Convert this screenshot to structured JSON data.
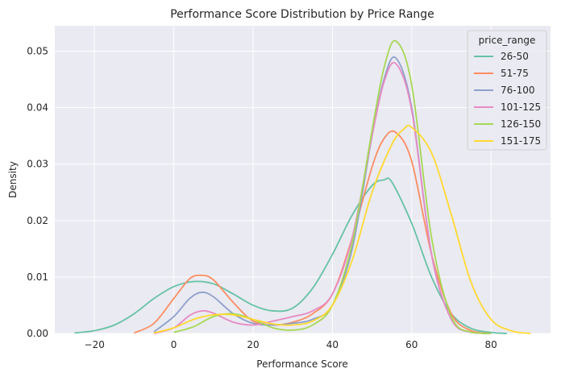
{
  "chart_data": {
    "type": "line",
    "title": "Performance Score Distribution by Price Range",
    "xlabel": "Performance Score",
    "ylabel": "Density",
    "xlim": [
      -30,
      95
    ],
    "ylim": [
      0,
      0.0545
    ],
    "xticks": [
      -20,
      0,
      20,
      40,
      60,
      80
    ],
    "xtick_labels": [
      "−20",
      "0",
      "20",
      "40",
      "60",
      "80"
    ],
    "yticks": [
      0,
      0.01,
      0.02,
      0.03,
      0.04,
      0.05
    ],
    "ytick_labels": [
      "0.00",
      "0.01",
      "0.02",
      "0.03",
      "0.04",
      "0.05"
    ],
    "grid": true,
    "legend": {
      "title": "price_range",
      "placement": "top-right"
    },
    "series": [
      {
        "name": "26-50",
        "color": "#66c2a5",
        "x": [
          -25,
          -20,
          -15,
          -10,
          -5,
          0,
          5,
          10,
          15,
          20,
          25,
          30,
          35,
          40,
          45,
          50,
          53,
          55,
          60,
          65,
          70,
          75,
          80,
          84
        ],
        "y": [
          0.0001,
          0.0005,
          0.0015,
          0.0035,
          0.0062,
          0.0083,
          0.0092,
          0.0088,
          0.007,
          0.005,
          0.004,
          0.0045,
          0.008,
          0.014,
          0.021,
          0.0262,
          0.0272,
          0.0268,
          0.0195,
          0.01,
          0.0035,
          0.0009,
          0.0002,
          0.0
        ]
      },
      {
        "name": "51-75",
        "color": "#fc8d62",
        "x": [
          -10,
          -5,
          0,
          4,
          7,
          10,
          15,
          20,
          25,
          30,
          35,
          40,
          45,
          50,
          53,
          56,
          60,
          65,
          70,
          75,
          80
        ],
        "y": [
          0.0001,
          0.0018,
          0.0062,
          0.0097,
          0.0103,
          0.0095,
          0.0055,
          0.0022,
          0.0015,
          0.002,
          0.0035,
          0.007,
          0.017,
          0.0295,
          0.0345,
          0.0356,
          0.0305,
          0.014,
          0.0035,
          0.0005,
          0.0
        ]
      },
      {
        "name": "76-100",
        "color": "#8da0cb",
        "x": [
          -5,
          0,
          4,
          7,
          10,
          15,
          20,
          25,
          30,
          35,
          40,
          45,
          50,
          53,
          56,
          60,
          65,
          70,
          75,
          80
        ],
        "y": [
          0.0003,
          0.003,
          0.0062,
          0.0073,
          0.0065,
          0.0035,
          0.0018,
          0.0015,
          0.0018,
          0.0025,
          0.005,
          0.015,
          0.035,
          0.045,
          0.0488,
          0.04,
          0.014,
          0.0025,
          0.0002,
          0.0
        ]
      },
      {
        "name": "101-125",
        "color": "#e78ac3",
        "x": [
          -5,
          0,
          4,
          7,
          10,
          15,
          20,
          25,
          30,
          35,
          40,
          45,
          50,
          53,
          56,
          60,
          65,
          70,
          75,
          80
        ],
        "y": [
          0.0,
          0.001,
          0.0032,
          0.004,
          0.0036,
          0.002,
          0.0015,
          0.0022,
          0.003,
          0.004,
          0.007,
          0.017,
          0.035,
          0.0445,
          0.0478,
          0.0395,
          0.014,
          0.0025,
          0.0002,
          0.0
        ]
      },
      {
        "name": "126-150",
        "color": "#a6d854",
        "x": [
          0,
          5,
          10,
          15,
          20,
          25,
          30,
          35,
          40,
          45,
          50,
          53,
          56,
          60,
          65,
          70,
          75,
          80
        ],
        "y": [
          0.0002,
          0.0012,
          0.003,
          0.0035,
          0.0025,
          0.001,
          0.0006,
          0.0015,
          0.005,
          0.016,
          0.036,
          0.047,
          0.0518,
          0.044,
          0.017,
          0.003,
          0.0002,
          0.0
        ]
      },
      {
        "name": "151-175",
        "color": "#ffd92f",
        "x": [
          -5,
          0,
          5,
          10,
          15,
          20,
          25,
          30,
          35,
          40,
          45,
          50,
          55,
          58,
          60,
          65,
          70,
          75,
          80,
          85,
          90
        ],
        "y": [
          0.0001,
          0.001,
          0.0025,
          0.0033,
          0.0033,
          0.0025,
          0.0017,
          0.0015,
          0.0022,
          0.005,
          0.013,
          0.025,
          0.0335,
          0.0362,
          0.0365,
          0.032,
          0.021,
          0.009,
          0.0025,
          0.0005,
          0.0
        ]
      }
    ]
  }
}
